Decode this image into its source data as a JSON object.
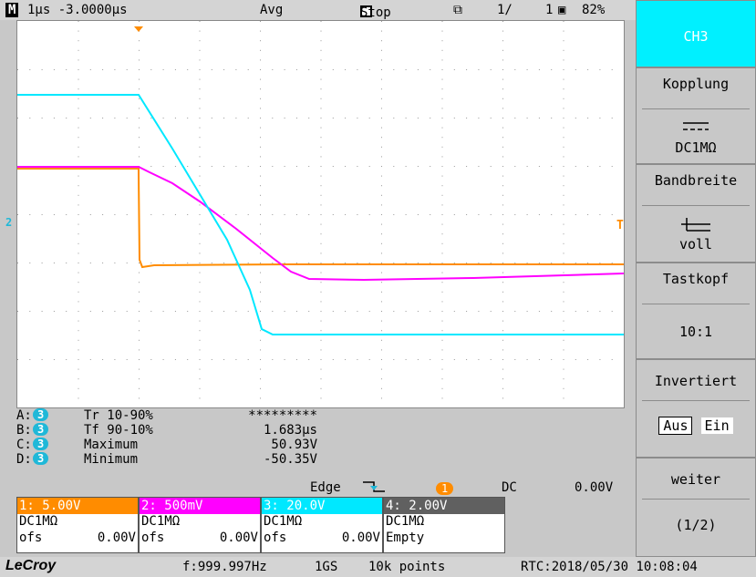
{
  "top_bar": {
    "mode": "M",
    "timebase": "1µs -3.0000µs",
    "acq": "Avg",
    "run_state": "Stop",
    "page": "1/",
    "page2": "1",
    "battery": "82%"
  },
  "channel_markers": {
    "trigger_level": "T",
    "ref_marker": "2"
  },
  "measurements": [
    {
      "slot": "A:",
      "ch": "3",
      "name": "Tr 10-90%",
      "value": "*********"
    },
    {
      "slot": "B:",
      "ch": "3",
      "name": "Tf 90-10%",
      "value": "1.683µs"
    },
    {
      "slot": "C:",
      "ch": "3",
      "name": "Maximum",
      "value": "50.93V"
    },
    {
      "slot": "D:",
      "ch": "3",
      "name": "Minimum",
      "value": "-50.35V"
    }
  ],
  "trigger": {
    "type": "Edge",
    "source": "1",
    "coupling": "DC",
    "level": "0.00V"
  },
  "channels": [
    {
      "header": "1: 5.00V",
      "coupling": "DC1MΩ",
      "ofs_label": "ofs",
      "ofs_value": "0.00V",
      "color": "#ff8c00"
    },
    {
      "header": "2: 500mV",
      "coupling": "DC1MΩ",
      "ofs_label": "ofs",
      "ofs_value": "0.00V",
      "color": "#ff00ff"
    },
    {
      "header": "3: 20.0V",
      "coupling": "DC1MΩ",
      "ofs_label": "ofs",
      "ofs_value": "0.00V",
      "color": "#00e8ff"
    },
    {
      "header": "4: 2.00V",
      "coupling": "DC1MΩ",
      "ofs_label": "Empty",
      "ofs_value": "",
      "color": "#606060"
    }
  ],
  "bottom_bar": {
    "logo": "LeCroy",
    "freq": "f:999.997Hz",
    "rate": "1GS",
    "points": "10k points",
    "rtc": "RTC:2018/05/30 10:08:04"
  },
  "side_menu": {
    "ch_title": "CH3",
    "kopplung_title": "Kopplung",
    "kopplung_value": "DC1MΩ",
    "bandbreite_title": "Bandbreite",
    "bandbreite_value": "voll",
    "tastkopf_title": "Tastkopf",
    "tastkopf_value": "10:1",
    "invertiert_title": "Invertiert",
    "invert_off": "Aus",
    "invert_on": "Ein",
    "weiter_title": "weiter",
    "weiter_value": "(1/2)"
  },
  "colors": {
    "ch1": "#ff8c00",
    "ch2": "#ff00ff",
    "ch3": "#00e8ff",
    "ch4": "#606060",
    "active_menu": "#00f0ff"
  }
}
